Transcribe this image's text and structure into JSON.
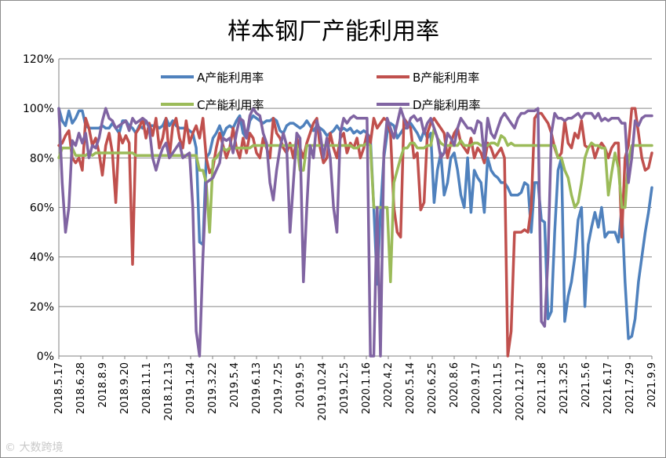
{
  "chart_data": {
    "type": "line",
    "title": "样本钢厂产能利用率",
    "ylim": [
      0,
      120
    ],
    "yticks": [
      "0%",
      "20%",
      "40%",
      "60%",
      "80%",
      "100%",
      "120%"
    ],
    "grid": "horizontal",
    "legend_position": "top",
    "x_tick_labels": [
      "2018.5.17",
      "2018.6.28",
      "2018.8.9",
      "2018.9.20",
      "2018.11.1",
      "2018.12.13",
      "2019.1.24",
      "2019.3.22",
      "2019.5.4",
      "2019.6.13",
      "2019.7.25",
      "2019.9.5",
      "2019.10.24",
      "2019.12.5",
      "2020.1.16",
      "2020.4.2",
      "2020.5.14",
      "2020.6.25",
      "2020.8.6",
      "2020.9.17",
      "2020.11.5",
      "2020.12.17",
      "2021.1.28",
      "2021.3.25",
      "2021.5.6",
      "2021.6.17",
      "2021.7.29",
      "2021.9.9"
    ],
    "series": [
      {
        "name": "A产能利用率",
        "color": "#4f81bd",
        "values": [
          100,
          95,
          93,
          99,
          94,
          96,
          99,
          99,
          93,
          92,
          92,
          92,
          92,
          93,
          92,
          92,
          94,
          92,
          90,
          95,
          95,
          93,
          92,
          90,
          93,
          92,
          95,
          93,
          93,
          93,
          92,
          93,
          96,
          93,
          95,
          93,
          92,
          92,
          92,
          91,
          90,
          84,
          46,
          45,
          80,
          82,
          88,
          90,
          93,
          89,
          92,
          93,
          92,
          95,
          97,
          90,
          88,
          95,
          97,
          96,
          95,
          94,
          95,
          95,
          96,
          95,
          91,
          90,
          93,
          94,
          94,
          93,
          92,
          93,
          95,
          93,
          91,
          93,
          92,
          91,
          89,
          90,
          91,
          93,
          91,
          92,
          91,
          92,
          90,
          91,
          90,
          91,
          90,
          88,
          60,
          29,
          58,
          80,
          90,
          94,
          93,
          88,
          90,
          92,
          92,
          94,
          92,
          90,
          87,
          91,
          88,
          90,
          62,
          75,
          82,
          65,
          70,
          80,
          82,
          75,
          65,
          60,
          80,
          58,
          75,
          72,
          70,
          58,
          80,
          75,
          73,
          72,
          70,
          70,
          68,
          65,
          65,
          65,
          66,
          70,
          69,
          50,
          70,
          70,
          55,
          54,
          15,
          18,
          50,
          75,
          80,
          14,
          24,
          30,
          40,
          55,
          60,
          20,
          45,
          52,
          58,
          52,
          60,
          48,
          50,
          50,
          50,
          46,
          60,
          30,
          7,
          8,
          15,
          30,
          40,
          50,
          58,
          68
        ]
      },
      {
        "name": "B产能利用率",
        "color": "#c0504d",
        "values": [
          85,
          86,
          89,
          91,
          80,
          78,
          80,
          75,
          96,
          92,
          85,
          88,
          82,
          73,
          85,
          90,
          82,
          62,
          90,
          86,
          89,
          86,
          37,
          90,
          92,
          96,
          88,
          94,
          89,
          96,
          84,
          88,
          96,
          80,
          93,
          96,
          88,
          84,
          95,
          86,
          90,
          93,
          88,
          96,
          80,
          74,
          76,
          84,
          90,
          85,
          80,
          84,
          92,
          84,
          80,
          88,
          82,
          90,
          88,
          82,
          80,
          88,
          84,
          80,
          96,
          90,
          88,
          84,
          82,
          86,
          80,
          88,
          84,
          80,
          86,
          90,
          94,
          96,
          84,
          78,
          80,
          90,
          84,
          80,
          88,
          90,
          82,
          86,
          84,
          88,
          80,
          84,
          90,
          86,
          96,
          92,
          94,
          96,
          95,
          90,
          60,
          50,
          48,
          96,
          94,
          92,
          80,
          82,
          59,
          62,
          90,
          94,
          96,
          94,
          92,
          90,
          80,
          86,
          90,
          92,
          86,
          84,
          82,
          88,
          80,
          84,
          82,
          78,
          86,
          84,
          80,
          82,
          84,
          80,
          0,
          10,
          50,
          50,
          50,
          51,
          50,
          60,
          96,
          98,
          98,
          96,
          94,
          90,
          84,
          80,
          82,
          95,
          86,
          84,
          90,
          88,
          95,
          85,
          84,
          86,
          80,
          84,
          86,
          84,
          80,
          84,
          86,
          86,
          48,
          80,
          85,
          100,
          100,
          90,
          80,
          75,
          76,
          82
        ]
      },
      {
        "name": "C产能利用率",
        "color": "#9bbb59",
        "values": [
          80,
          84,
          84,
          84,
          84,
          81,
          81,
          81,
          81,
          82,
          81,
          82,
          82,
          82,
          82,
          82,
          82,
          82,
          82,
          82,
          82,
          82,
          82,
          81,
          81,
          81,
          81,
          81,
          81,
          81,
          81,
          81,
          81,
          81,
          81,
          81,
          81,
          81,
          81,
          81,
          81,
          81,
          75,
          75,
          70,
          50,
          79,
          80,
          82,
          84,
          83,
          84,
          84,
          84,
          84,
          84,
          84,
          84,
          85,
          85,
          85,
          85,
          85,
          85,
          85,
          85,
          85,
          85,
          85,
          85,
          85,
          85,
          75,
          75,
          85,
          85,
          85,
          85,
          85,
          85,
          85,
          85,
          85,
          85,
          85,
          85,
          85,
          85,
          84,
          84,
          85,
          85,
          86,
          85,
          60,
          60,
          60,
          60,
          60,
          30,
          70,
          75,
          80,
          84,
          84,
          86,
          86,
          84,
          84,
          84,
          85,
          85,
          92,
          88,
          86,
          85,
          85,
          85,
          85,
          85,
          87,
          85,
          85,
          85,
          86,
          86,
          85,
          85,
          85,
          86,
          86,
          85,
          89,
          88,
          85,
          86,
          85,
          85,
          85,
          85,
          85,
          85,
          85,
          85,
          85,
          85,
          85,
          85,
          85,
          80,
          80,
          75,
          72,
          65,
          60,
          62,
          70,
          80,
          84,
          86,
          85,
          85,
          84,
          84,
          65,
          74,
          82,
          76,
          60,
          60,
          79,
          85,
          85,
          85,
          85,
          85,
          85,
          85
        ]
      },
      {
        "name": "D产能利用率",
        "color": "#8064a2",
        "values": [
          100,
          70,
          50,
          60,
          87,
          85,
          90,
          86,
          90,
          80,
          85,
          84,
          88,
          95,
          100,
          96,
          95,
          92,
          93,
          94,
          95,
          91,
          96,
          94,
          95,
          96,
          95,
          92,
          80,
          75,
          80,
          84,
          86,
          80,
          82,
          84,
          86,
          80,
          81,
          82,
          60,
          10,
          0,
          40,
          70,
          71,
          72,
          75,
          78,
          88,
          87,
          88,
          82,
          90,
          96,
          95,
          88,
          97,
          100,
          98,
          97,
          90,
          86,
          70,
          63,
          75,
          84,
          90,
          85,
          50,
          70,
          90,
          88,
          30,
          60,
          85,
          80,
          95,
          90,
          80,
          88,
          80,
          60,
          50,
          90,
          96,
          94,
          96,
          97,
          96,
          96,
          96,
          96,
          0,
          0,
          60,
          0,
          82,
          96,
          92,
          88,
          94,
          100,
          96,
          92,
          96,
          97,
          95,
          96,
          90,
          94,
          96,
          92,
          88,
          80,
          82,
          90,
          88,
          85,
          92,
          96,
          94,
          92,
          92,
          90,
          95,
          94,
          80,
          96,
          90,
          88,
          92,
          96,
          98,
          96,
          94,
          92,
          96,
          98,
          98,
          99,
          99,
          99,
          100,
          14,
          12,
          40,
          90,
          98,
          96,
          96,
          95,
          96,
          96,
          97,
          98,
          96,
          98,
          98,
          98,
          96,
          98,
          95,
          96,
          95,
          96,
          96,
          96,
          94,
          94,
          70,
          80,
          95,
          93,
          96,
          97,
          97,
          97
        ]
      }
    ]
  }
}
